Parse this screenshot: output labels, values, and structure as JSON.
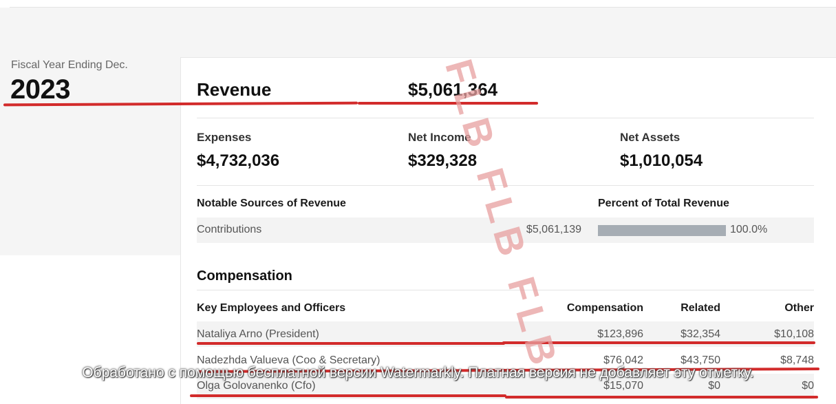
{
  "fiscal": {
    "label": "Fiscal Year Ending Dec.",
    "year": "2023"
  },
  "revenue": {
    "label": "Revenue",
    "value": "$5,061,364"
  },
  "metrics": [
    {
      "label": "Expenses",
      "value": "$4,732,036"
    },
    {
      "label": "Net Income",
      "value": "$329,328"
    },
    {
      "label": "Net Assets",
      "value": "$1,010,054"
    }
  ],
  "revenue_sources": {
    "header_left": "Notable Sources of Revenue",
    "header_right": "Percent of Total Revenue",
    "rows": [
      {
        "name": "Contributions",
        "amount": "$5,061,139",
        "percent": "100.0%",
        "percent_value": 1.0
      }
    ]
  },
  "compensation": {
    "title": "Compensation",
    "headers": {
      "name": "Key Employees and Officers",
      "compensation": "Compensation",
      "related": "Related",
      "other": "Other"
    },
    "rows": [
      {
        "name": "Nataliya Arno (President)",
        "compensation": "$123,896",
        "related": "$32,354",
        "other": "$10,108"
      },
      {
        "name": "Nadezhda Valueva (Coo & Secretary)",
        "compensation": "$76,042",
        "related": "$43,750",
        "other": "$8,748"
      },
      {
        "name": "Olga Golovanenko (Cfo)",
        "compensation": "$15,070",
        "related": "$0",
        "other": "$0"
      }
    ]
  },
  "watermarks": {
    "diagonal": "FLB FLB FLB",
    "footer": "Обработано с помощью бесплатной версии Watermarkly. Платная версия не добавляет эту отметку."
  },
  "colors": {
    "highlight_line": "#d22b2b",
    "percent_bar": "#a6adb4"
  }
}
